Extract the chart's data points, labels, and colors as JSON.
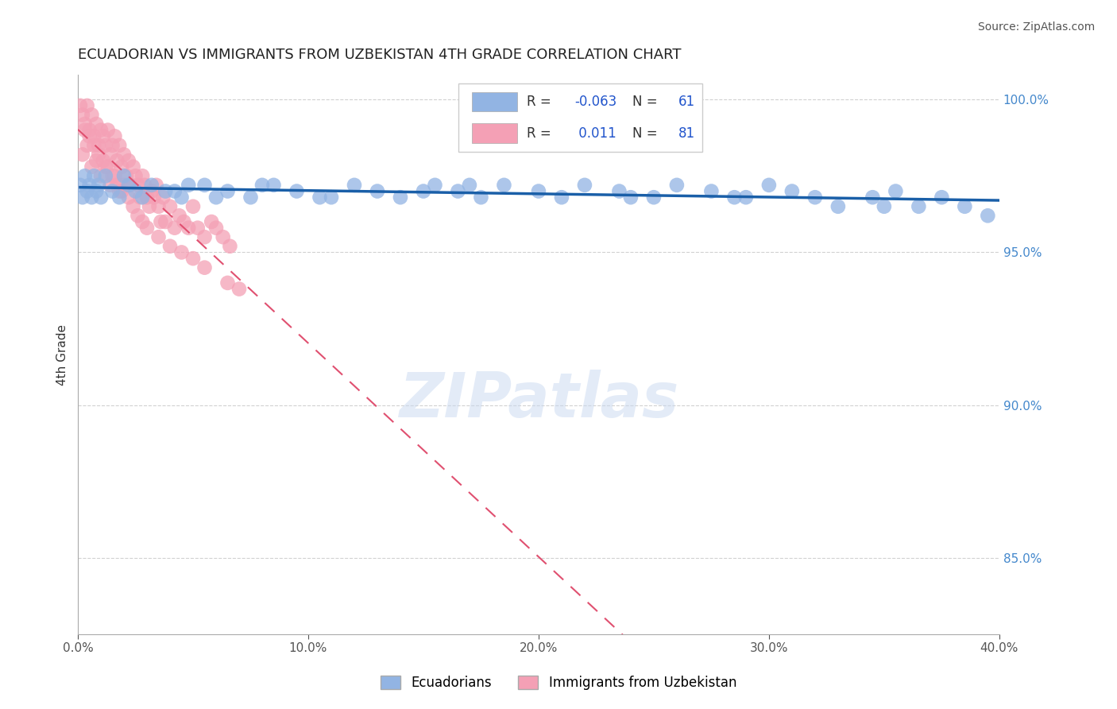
{
  "title": "ECUADORIAN VS IMMIGRANTS FROM UZBEKISTAN 4TH GRADE CORRELATION CHART",
  "source_text": "Source: ZipAtlas.com",
  "ylabel": "4th Grade",
  "xlim": [
    0.0,
    0.4
  ],
  "ylim": [
    0.825,
    1.008
  ],
  "xticks": [
    0.0,
    0.1,
    0.2,
    0.3,
    0.4
  ],
  "xtick_labels": [
    "0.0%",
    "10.0%",
    "20.0%",
    "30.0%",
    "40.0%"
  ],
  "ytick_values_right": [
    0.85,
    0.9,
    0.95,
    1.0
  ],
  "ytick_labels_right": [
    "85.0%",
    "90.0%",
    "95.0%",
    "100.0%"
  ],
  "blue_R": -0.063,
  "blue_N": 61,
  "pink_R": 0.011,
  "pink_N": 81,
  "blue_color": "#92b4e3",
  "pink_color": "#f4a0b5",
  "blue_line_color": "#1a5fa8",
  "pink_line_color": "#e05070",
  "watermark": "ZIPatlas",
  "legend_label_blue": "Ecuadorians",
  "legend_label_pink": "Immigrants from Uzbekistan",
  "blue_x": [
    0.001,
    0.002,
    0.003,
    0.004,
    0.005,
    0.006,
    0.007,
    0.008,
    0.009,
    0.01,
    0.012,
    0.015,
    0.018,
    0.02,
    0.022,
    0.025,
    0.028,
    0.032,
    0.038,
    0.045,
    0.055,
    0.065,
    0.075,
    0.085,
    0.095,
    0.11,
    0.12,
    0.13,
    0.14,
    0.155,
    0.165,
    0.175,
    0.185,
    0.2,
    0.21,
    0.22,
    0.235,
    0.25,
    0.26,
    0.275,
    0.29,
    0.3,
    0.31,
    0.32,
    0.33,
    0.345,
    0.355,
    0.365,
    0.375,
    0.385,
    0.35,
    0.285,
    0.17,
    0.105,
    0.048,
    0.042,
    0.06,
    0.08,
    0.15,
    0.24,
    0.395
  ],
  "blue_y": [
    0.972,
    0.968,
    0.975,
    0.97,
    0.972,
    0.968,
    0.975,
    0.97,
    0.972,
    0.968,
    0.975,
    0.97,
    0.968,
    0.975,
    0.972,
    0.97,
    0.968,
    0.972,
    0.97,
    0.968,
    0.972,
    0.97,
    0.968,
    0.972,
    0.97,
    0.968,
    0.972,
    0.97,
    0.968,
    0.972,
    0.97,
    0.968,
    0.972,
    0.97,
    0.968,
    0.972,
    0.97,
    0.968,
    0.972,
    0.97,
    0.968,
    0.972,
    0.97,
    0.968,
    0.965,
    0.968,
    0.97,
    0.965,
    0.968,
    0.965,
    0.965,
    0.968,
    0.972,
    0.968,
    0.972,
    0.97,
    0.968,
    0.972,
    0.97,
    0.968,
    0.962
  ],
  "pink_x": [
    0.001,
    0.002,
    0.003,
    0.004,
    0.005,
    0.006,
    0.007,
    0.008,
    0.009,
    0.01,
    0.011,
    0.012,
    0.013,
    0.014,
    0.015,
    0.016,
    0.017,
    0.018,
    0.019,
    0.02,
    0.021,
    0.022,
    0.023,
    0.024,
    0.025,
    0.026,
    0.027,
    0.028,
    0.029,
    0.03,
    0.031,
    0.032,
    0.033,
    0.034,
    0.035,
    0.036,
    0.037,
    0.038,
    0.04,
    0.042,
    0.044,
    0.046,
    0.048,
    0.05,
    0.052,
    0.055,
    0.058,
    0.06,
    0.063,
    0.066,
    0.002,
    0.004,
    0.006,
    0.008,
    0.01,
    0.012,
    0.014,
    0.016,
    0.018,
    0.02,
    0.003,
    0.005,
    0.007,
    0.009,
    0.011,
    0.013,
    0.015,
    0.017,
    0.019,
    0.022,
    0.024,
    0.026,
    0.028,
    0.03,
    0.035,
    0.04,
    0.045,
    0.05,
    0.055,
    0.065,
    0.07
  ],
  "pink_y": [
    0.998,
    0.995,
    0.992,
    0.998,
    0.99,
    0.995,
    0.988,
    0.992,
    0.985,
    0.99,
    0.988,
    0.985,
    0.99,
    0.982,
    0.985,
    0.988,
    0.98,
    0.985,
    0.978,
    0.982,
    0.975,
    0.98,
    0.972,
    0.978,
    0.975,
    0.972,
    0.968,
    0.975,
    0.972,
    0.968,
    0.965,
    0.97,
    0.968,
    0.972,
    0.965,
    0.96,
    0.968,
    0.96,
    0.965,
    0.958,
    0.962,
    0.96,
    0.958,
    0.965,
    0.958,
    0.955,
    0.96,
    0.958,
    0.955,
    0.952,
    0.982,
    0.985,
    0.978,
    0.98,
    0.975,
    0.978,
    0.972,
    0.975,
    0.97,
    0.972,
    0.99,
    0.988,
    0.985,
    0.982,
    0.98,
    0.978,
    0.975,
    0.972,
    0.97,
    0.968,
    0.965,
    0.962,
    0.96,
    0.958,
    0.955,
    0.952,
    0.95,
    0.948,
    0.945,
    0.94,
    0.938
  ]
}
